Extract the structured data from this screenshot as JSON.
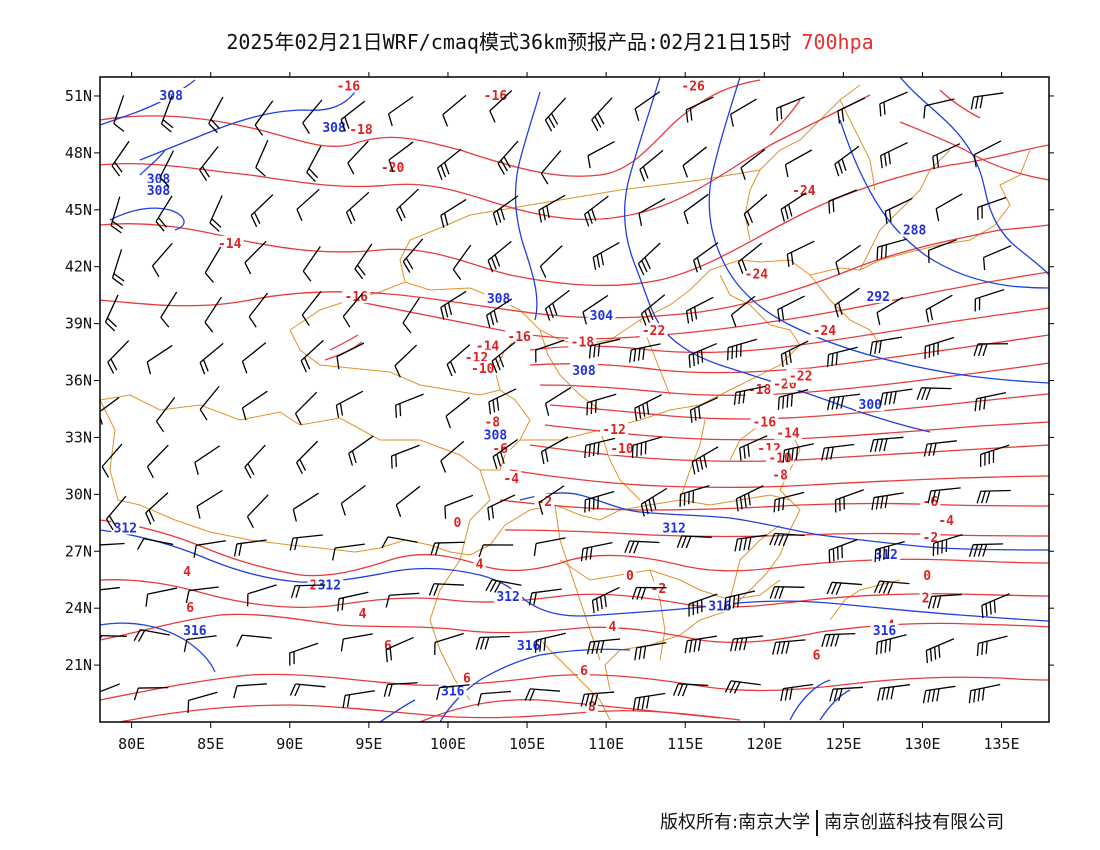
{
  "title": {
    "text": "2025年02月21日WRF/cmaq模式36km预报产品:02月21日15时",
    "level": "700hpa",
    "level_color": "#e53030"
  },
  "axes": {
    "lon_min": 78,
    "lon_max": 138,
    "lat_min": 18,
    "lat_max": 52,
    "lon_ticks": [
      80,
      85,
      90,
      95,
      100,
      105,
      110,
      115,
      120,
      125,
      130,
      135
    ],
    "lon_labels": [
      "80E",
      "85E",
      "90E",
      "95E",
      "100E",
      "105E",
      "110E",
      "115E",
      "120E",
      "125E",
      "130E",
      "135E"
    ],
    "lat_ticks": [
      21,
      24,
      27,
      30,
      33,
      36,
      39,
      42,
      45,
      48,
      51
    ],
    "lat_labels": [
      "21N",
      "24N",
      "27N",
      "30N",
      "33N",
      "36N",
      "39N",
      "42N",
      "45N",
      "48N",
      "51N"
    ]
  },
  "colors": {
    "temperature": "#e83a3a",
    "geopotential": "#2040e0",
    "boundary": "#e0922a",
    "wind": "#000000",
    "frame": "#000000"
  },
  "temperature_labels": [
    {
      "t": "-16",
      "lon": 93.7,
      "lat": 51.5
    },
    {
      "t": "-16",
      "lon": 103.0,
      "lat": 51.0
    },
    {
      "t": "-18",
      "lon": 94.5,
      "lat": 49.2
    },
    {
      "t": "-20",
      "lon": 96.5,
      "lat": 47.2
    },
    {
      "t": "-26",
      "lon": 115.5,
      "lat": 51.5
    },
    {
      "t": "-24",
      "lon": 122.5,
      "lat": 46.0
    },
    {
      "t": "-14",
      "lon": 86.2,
      "lat": 43.2
    },
    {
      "t": "-16",
      "lon": 94.2,
      "lat": 40.4
    },
    {
      "t": "-24",
      "lon": 119.5,
      "lat": 41.6
    },
    {
      "t": "-24",
      "lon": 123.8,
      "lat": 38.6
    },
    {
      "t": "-14",
      "lon": 102.5,
      "lat": 37.8
    },
    {
      "t": "-16",
      "lon": 104.5,
      "lat": 38.3
    },
    {
      "t": "-18",
      "lon": 108.5,
      "lat": 38.0
    },
    {
      "t": "-22",
      "lon": 113.0,
      "lat": 38.6
    },
    {
      "t": "-12",
      "lon": 101.8,
      "lat": 37.2
    },
    {
      "t": "-10",
      "lon": 102.2,
      "lat": 36.6
    },
    {
      "t": "-20",
      "lon": 121.3,
      "lat": 35.8
    },
    {
      "t": "-22",
      "lon": 122.3,
      "lat": 36.2
    },
    {
      "t": "-18",
      "lon": 119.7,
      "lat": 35.5
    },
    {
      "t": "-16",
      "lon": 120.0,
      "lat": 33.8
    },
    {
      "t": "-14",
      "lon": 121.5,
      "lat": 33.2
    },
    {
      "t": "-12",
      "lon": 110.5,
      "lat": 33.4
    },
    {
      "t": "-10",
      "lon": 111.0,
      "lat": 32.4
    },
    {
      "t": "-12",
      "lon": 120.3,
      "lat": 32.4
    },
    {
      "t": "-10",
      "lon": 121.0,
      "lat": 31.9
    },
    {
      "t": "-8",
      "lon": 121.0,
      "lat": 31.0
    },
    {
      "t": "-8",
      "lon": 102.8,
      "lat": 33.8
    },
    {
      "t": "-6",
      "lon": 103.3,
      "lat": 32.4
    },
    {
      "t": "-4",
      "lon": 104.0,
      "lat": 30.8
    },
    {
      "t": "-2",
      "lon": 106.1,
      "lat": 29.6
    },
    {
      "t": "0",
      "lon": 100.6,
      "lat": 28.5
    },
    {
      "t": "-6",
      "lon": 130.5,
      "lat": 29.6
    },
    {
      "t": "-4",
      "lon": 131.5,
      "lat": 28.6
    },
    {
      "t": "-2",
      "lon": 130.5,
      "lat": 27.7
    },
    {
      "t": "0",
      "lon": 130.3,
      "lat": 25.7
    },
    {
      "t": "0",
      "lon": 111.5,
      "lat": 25.7
    },
    {
      "t": "-2",
      "lon": 113.3,
      "lat": 25.0
    },
    {
      "t": "2",
      "lon": 130.2,
      "lat": 24.5
    },
    {
      "t": "4",
      "lon": 128.0,
      "lat": 23.1
    },
    {
      "t": "4",
      "lon": 83.5,
      "lat": 25.9
    },
    {
      "t": "2",
      "lon": 91.5,
      "lat": 25.2
    },
    {
      "t": "6",
      "lon": 83.7,
      "lat": 24.0
    },
    {
      "t": "4",
      "lon": 94.6,
      "lat": 23.7
    },
    {
      "t": "6",
      "lon": 96.2,
      "lat": 22.0
    },
    {
      "t": "4",
      "lon": 102.0,
      "lat": 26.3
    },
    {
      "t": "4",
      "lon": 110.4,
      "lat": 23.0
    },
    {
      "t": "6",
      "lon": 101.2,
      "lat": 20.3
    },
    {
      "t": "6",
      "lon": 108.6,
      "lat": 20.7
    },
    {
      "t": "6",
      "lon": 123.3,
      "lat": 21.5
    },
    {
      "t": "8",
      "lon": 109.1,
      "lat": 18.8
    }
  ],
  "geopotential_labels": [
    {
      "t": "308",
      "lon": 82.5,
      "lat": 51.0
    },
    {
      "t": "308",
      "lon": 92.8,
      "lat": 49.3
    },
    {
      "t": "308",
      "lon": 81.7,
      "lat": 46.6
    },
    {
      "t": "308",
      "lon": 81.7,
      "lat": 46.0
    },
    {
      "t": "288",
      "lon": 129.5,
      "lat": 43.9
    },
    {
      "t": "292",
      "lon": 127.2,
      "lat": 40.4
    },
    {
      "t": "308",
      "lon": 103.2,
      "lat": 40.3
    },
    {
      "t": "304",
      "lon": 109.7,
      "lat": 39.4
    },
    {
      "t": "308",
      "lon": 108.6,
      "lat": 36.5
    },
    {
      "t": "300",
      "lon": 126.7,
      "lat": 34.7
    },
    {
      "t": "308",
      "lon": 103.0,
      "lat": 33.1
    },
    {
      "t": "312",
      "lon": 79.6,
      "lat": 28.2
    },
    {
      "t": "312",
      "lon": 114.3,
      "lat": 28.2
    },
    {
      "t": "312",
      "lon": 127.7,
      "lat": 26.8
    },
    {
      "t": "312",
      "lon": 92.5,
      "lat": 25.2
    },
    {
      "t": "312",
      "lon": 103.8,
      "lat": 24.6
    },
    {
      "t": "316",
      "lon": 117.2,
      "lat": 24.1
    },
    {
      "t": "316",
      "lon": 127.6,
      "lat": 22.8
    },
    {
      "t": "316",
      "lon": 84.0,
      "lat": 22.8
    },
    {
      "t": "316",
      "lon": 105.1,
      "lat": 22.0
    },
    {
      "t": "316",
      "lon": 100.3,
      "lat": 19.6
    }
  ],
  "footer": {
    "left": "版权所有:南京大学",
    "right": "南京创蓝科技有限公司"
  }
}
